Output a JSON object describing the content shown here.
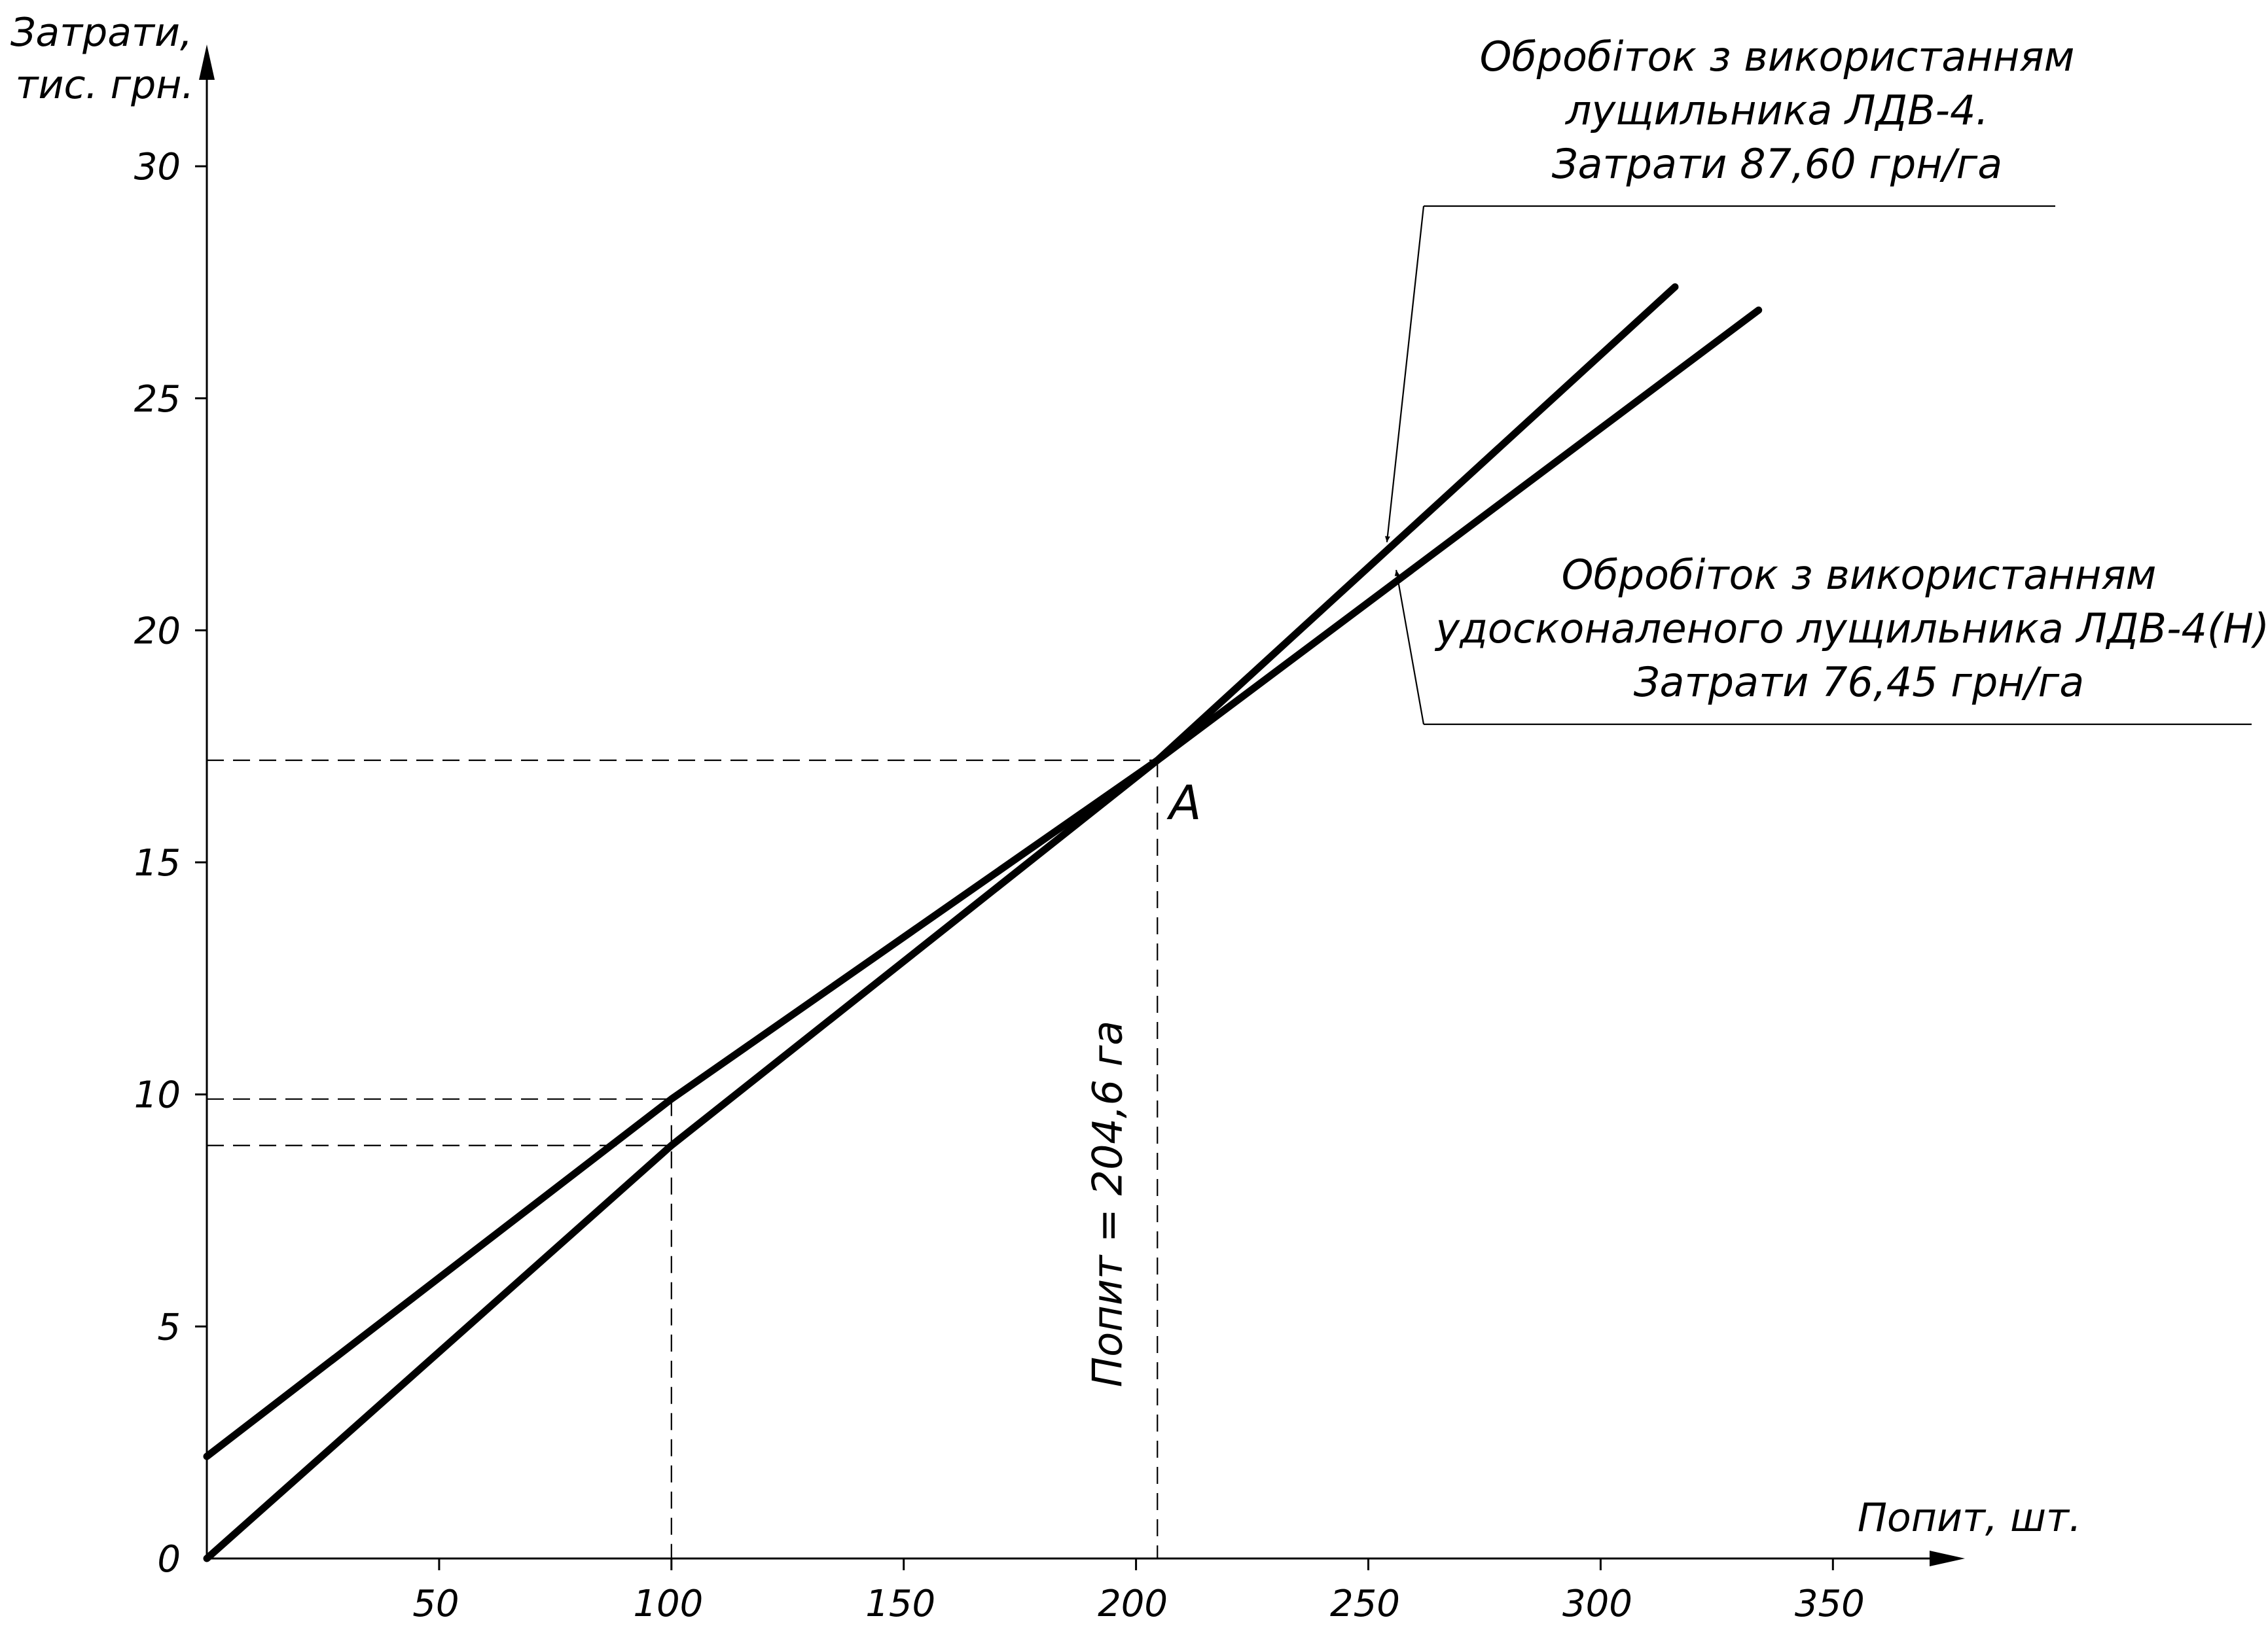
{
  "chart_data": {
    "type": "line",
    "title": "",
    "ylabel_line1": "Затрати,",
    "ylabel_line2": "тис. грн.",
    "xlabel": "Попит, шт.",
    "xlim": [
      0,
      390
    ],
    "ylim": [
      0,
      31
    ],
    "x_ticks": [
      50,
      100,
      150,
      200,
      250,
      300,
      350
    ],
    "y_ticks": [
      0,
      5,
      10,
      15,
      20,
      25,
      30
    ],
    "x_tick_labels": [
      "50",
      "100",
      "150",
      "200",
      "250",
      "300",
      "350"
    ],
    "y_tick_labels": [
      "0",
      "5",
      "10",
      "15",
      "20",
      "25",
      "30"
    ],
    "series": [
      {
        "id": "ldv4",
        "x": [
          0,
          100,
          204.6,
          316
        ],
        "values": [
          0,
          8.9,
          17.2,
          27.4
        ]
      },
      {
        "id": "ldv4n",
        "x": [
          0,
          100,
          204.6,
          334
        ],
        "values": [
          2.2,
          9.9,
          17.2,
          26.9
        ]
      }
    ],
    "guides": [
      {
        "x": 204.6,
        "y": 17.2
      },
      {
        "x": 100,
        "y": 9.9
      },
      {
        "x": 100,
        "y": 8.9
      }
    ],
    "point_label": "A",
    "vertical_annotation": "Попит = 204,6 га",
    "annotations": [
      {
        "lines": [
          "Обробіток з використанням",
          "лущильника ЛДВ-4.",
          "Затрати 87,60 грн/га"
        ],
        "target_x": 254,
        "target_y": 21.9
      },
      {
        "lines": [
          "Обробіток з використанням",
          "удосконаленого лущильника ЛДВ-4(Н).",
          "Затрати 76,45 грн/га"
        ],
        "target_x": 256,
        "target_y": 21.3
      }
    ]
  }
}
